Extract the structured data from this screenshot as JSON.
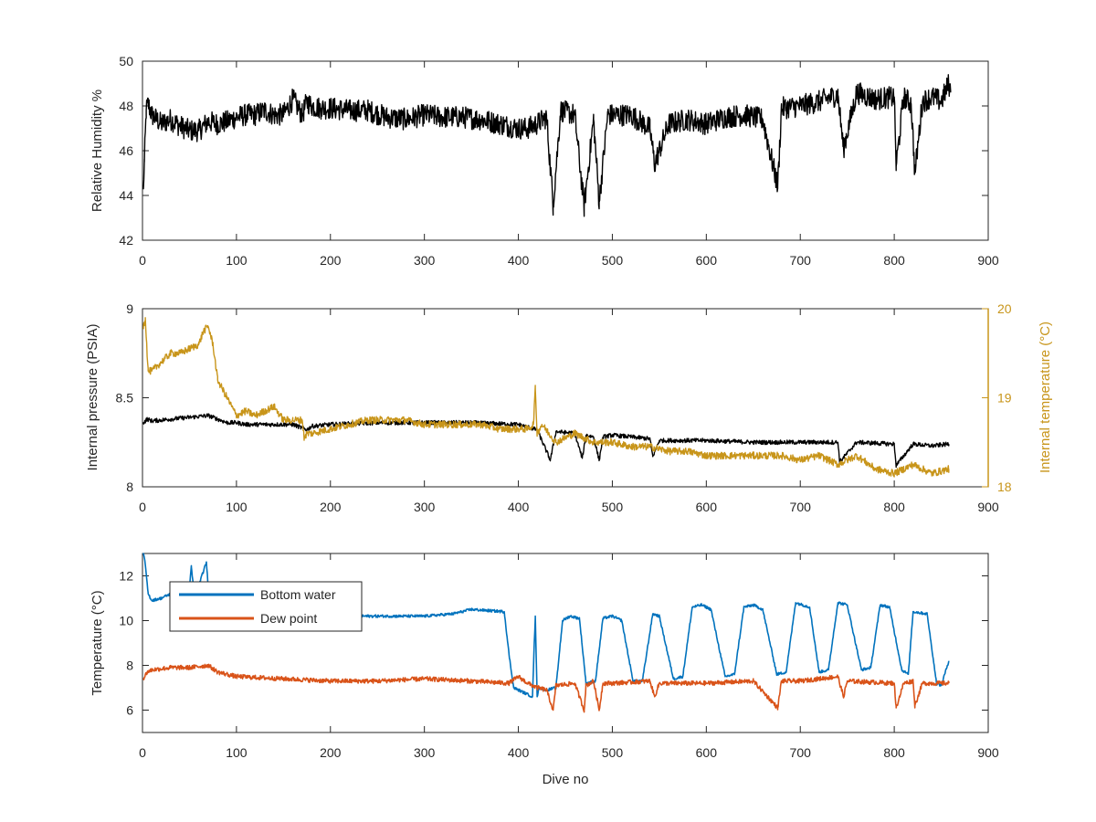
{
  "figure": {
    "xlabel": "Dive no"
  },
  "chart_data": [
    {
      "type": "line",
      "panel": "relative-humidity",
      "xlabel": "",
      "ylabel": "Relative Humidity %",
      "xlim": [
        0,
        900
      ],
      "ylim": [
        42,
        50
      ],
      "xticks": [
        0,
        100,
        200,
        300,
        400,
        500,
        600,
        700,
        800,
        900
      ],
      "yticks": [
        42,
        44,
        46,
        48,
        50
      ],
      "grid": false,
      "series": [
        {
          "color": "#000000",
          "noise": 0.5,
          "x": [
            1,
            2,
            4,
            6,
            10,
            20,
            30,
            40,
            50,
            60,
            70,
            80,
            90,
            100,
            110,
            120,
            130,
            140,
            150,
            160,
            170,
            175,
            180,
            190,
            200,
            220,
            240,
            260,
            280,
            300,
            320,
            340,
            360,
            380,
            400,
            410,
            420,
            430,
            437,
            445,
            460,
            470,
            480,
            486,
            495,
            510,
            520,
            540,
            545,
            560,
            580,
            600,
            620,
            640,
            660,
            676,
            680,
            700,
            720,
            740,
            746,
            760,
            780,
            800,
            802,
            810,
            818,
            822,
            830,
            840,
            850,
            858,
            860
          ],
          "y": [
            44.3,
            45.5,
            47.8,
            48.1,
            47.6,
            47.2,
            47.4,
            47.1,
            46.9,
            46.9,
            47.3,
            47.2,
            47.3,
            47.5,
            47.6,
            47.6,
            47.8,
            47.6,
            47.6,
            48.3,
            47.6,
            48.2,
            48.0,
            47.9,
            47.9,
            47.8,
            47.8,
            47.5,
            47.4,
            47.6,
            47.5,
            47.5,
            47.4,
            47.2,
            47.0,
            47.0,
            47.2,
            47.5,
            43.6,
            47.8,
            47.6,
            43.5,
            47.4,
            43.7,
            47.6,
            47.6,
            47.6,
            47.0,
            45.4,
            47.2,
            47.4,
            47.2,
            47.5,
            47.6,
            47.4,
            44.4,
            47.9,
            48.0,
            48.2,
            48.5,
            46.1,
            48.6,
            48.3,
            48.4,
            45.3,
            48.4,
            48.1,
            45.0,
            48.2,
            48.4,
            48.2,
            49.0,
            48.6
          ]
        }
      ]
    },
    {
      "type": "line",
      "panel": "internal-pressure-temperature",
      "xlabel": "",
      "ylabel": "Internal pressure (PSIA)",
      "ylabel_right": "Internal temperature (°C)",
      "xlim": [
        0,
        900
      ],
      "ylim": [
        8,
        9
      ],
      "ylim_right": [
        18,
        20
      ],
      "xticks": [
        0,
        100,
        200,
        300,
        400,
        500,
        600,
        700,
        800,
        900
      ],
      "yticks": [
        8,
        8.5,
        9
      ],
      "yticks_right": [
        18,
        19,
        20
      ],
      "grid": false,
      "series": [
        {
          "color": "#000000",
          "axis": "left",
          "noise": 0.012,
          "x": [
            1,
            5,
            10,
            30,
            50,
            70,
            90,
            100,
            110,
            150,
            160,
            175,
            180,
            200,
            250,
            300,
            350,
            400,
            420,
            434,
            440,
            460,
            468,
            472,
            480,
            486,
            490,
            500,
            520,
            540,
            543,
            550,
            600,
            650,
            700,
            740,
            742,
            760,
            800,
            802,
            820,
            840,
            858
          ],
          "y": [
            8.36,
            8.38,
            8.37,
            8.38,
            8.39,
            8.4,
            8.36,
            8.36,
            8.35,
            8.35,
            8.35,
            8.32,
            8.34,
            8.35,
            8.36,
            8.36,
            8.36,
            8.35,
            8.32,
            8.15,
            8.31,
            8.3,
            8.16,
            8.29,
            8.28,
            8.15,
            8.28,
            8.29,
            8.28,
            8.27,
            8.17,
            8.26,
            8.26,
            8.25,
            8.25,
            8.25,
            8.14,
            8.25,
            8.24,
            8.12,
            8.24,
            8.23,
            8.24
          ]
        },
        {
          "color": "#C8951A",
          "axis": "right",
          "noise": 0.04,
          "x": [
            1,
            3,
            6,
            10,
            20,
            30,
            40,
            50,
            60,
            65,
            70,
            75,
            80,
            90,
            100,
            110,
            120,
            130,
            140,
            150,
            160,
            170,
            172,
            175,
            180,
            200,
            220,
            240,
            260,
            280,
            300,
            320,
            340,
            360,
            380,
            400,
            410,
            416,
            418,
            420,
            425,
            440,
            460,
            470,
            480,
            500,
            520,
            540,
            560,
            580,
            600,
            620,
            640,
            660,
            680,
            700,
            720,
            740,
            760,
            780,
            800,
            820,
            840,
            858
          ],
          "y": [
            19.8,
            19.9,
            19.3,
            19.3,
            19.4,
            19.5,
            19.5,
            19.55,
            19.6,
            19.75,
            19.8,
            19.6,
            19.2,
            19.0,
            18.8,
            18.85,
            18.8,
            18.85,
            18.9,
            18.75,
            18.75,
            18.75,
            18.55,
            18.6,
            18.6,
            18.65,
            18.7,
            18.75,
            18.75,
            18.75,
            18.7,
            18.7,
            18.7,
            18.7,
            18.65,
            18.65,
            18.65,
            18.7,
            19.1,
            18.6,
            18.7,
            18.5,
            18.6,
            18.55,
            18.5,
            18.5,
            18.45,
            18.45,
            18.4,
            18.4,
            18.35,
            18.35,
            18.35,
            18.35,
            18.35,
            18.3,
            18.35,
            18.25,
            18.35,
            18.2,
            18.15,
            18.25,
            18.15,
            18.2
          ]
        }
      ]
    },
    {
      "type": "line",
      "panel": "temperature",
      "xlabel": "Dive no",
      "ylabel": "Temperature (°C)",
      "xlim": [
        0,
        900
      ],
      "ylim": [
        5,
        13
      ],
      "xticks": [
        0,
        100,
        200,
        300,
        400,
        500,
        600,
        700,
        800,
        900
      ],
      "yticks": [
        6,
        8,
        10,
        12
      ],
      "grid": false,
      "legend": "top-left",
      "series": [
        {
          "name": "Bottom water",
          "color": "#0072BD",
          "noise": 0.06,
          "x": [
            1,
            3,
            6,
            10,
            20,
            30,
            40,
            50,
            52,
            54,
            60,
            68,
            70,
            72,
            80,
            100,
            150,
            200,
            250,
            300,
            330,
            350,
            385,
            390,
            395,
            405,
            415,
            418,
            420,
            422,
            430,
            440,
            447,
            455,
            465,
            472,
            482,
            490,
            500,
            510,
            522,
            532,
            543,
            550,
            565,
            575,
            585,
            595,
            605,
            620,
            630,
            640,
            650,
            660,
            675,
            685,
            695,
            710,
            720,
            730,
            740,
            750,
            765,
            775,
            785,
            795,
            808,
            815,
            820,
            835,
            845,
            850,
            858
          ],
          "y": [
            13.0,
            12.5,
            11.2,
            10.9,
            11.0,
            11.2,
            11.5,
            11.5,
            12.4,
            11.6,
            11.6,
            12.6,
            11.5,
            11.3,
            11.0,
            10.7,
            10.3,
            10.2,
            10.2,
            10.2,
            10.3,
            10.5,
            10.4,
            8.5,
            7.0,
            6.8,
            6.6,
            10.2,
            6.6,
            7.0,
            6.9,
            7.0,
            10.0,
            10.2,
            10.1,
            7.2,
            7.3,
            10.1,
            10.2,
            10.0,
            7.3,
            7.3,
            10.3,
            10.2,
            7.4,
            7.5,
            10.6,
            10.7,
            10.5,
            7.5,
            7.6,
            10.6,
            10.7,
            10.5,
            7.6,
            7.7,
            10.8,
            10.6,
            7.7,
            7.8,
            10.8,
            10.7,
            7.8,
            7.9,
            10.7,
            10.6,
            7.8,
            7.6,
            10.4,
            10.3,
            7.2,
            7.1,
            8.2
          ]
        },
        {
          "name": "Dew point",
          "color": "#D95319",
          "noise": 0.1,
          "x": [
            1,
            5,
            10,
            30,
            50,
            70,
            80,
            100,
            150,
            200,
            250,
            300,
            350,
            390,
            400,
            410,
            420,
            430,
            437,
            440,
            460,
            470,
            472,
            480,
            486,
            490,
            500,
            540,
            545,
            550,
            600,
            650,
            676,
            680,
            700,
            720,
            740,
            746,
            750,
            800,
            802,
            810,
            820,
            822,
            830,
            858
          ],
          "y": [
            7.4,
            7.7,
            7.8,
            7.9,
            7.9,
            8.0,
            7.7,
            7.5,
            7.4,
            7.3,
            7.3,
            7.4,
            7.3,
            7.2,
            7.5,
            7.2,
            7.0,
            6.9,
            6.0,
            7.1,
            7.2,
            6.0,
            7.1,
            7.3,
            6.0,
            7.2,
            7.2,
            7.3,
            6.6,
            7.2,
            7.2,
            7.3,
            6.1,
            7.3,
            7.3,
            7.4,
            7.5,
            6.6,
            7.3,
            7.2,
            6.1,
            7.2,
            7.3,
            6.2,
            7.2,
            7.2
          ]
        }
      ]
    }
  ]
}
